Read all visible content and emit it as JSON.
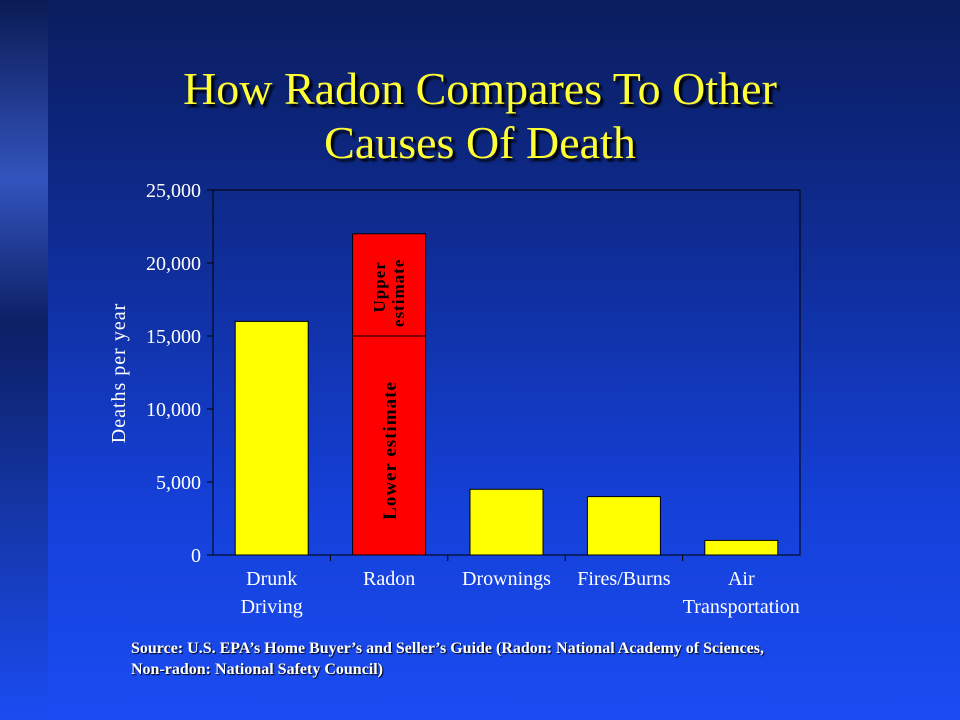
{
  "slide": {
    "title_line1": "How Radon Compares To Other",
    "title_line2": "Causes Of Death",
    "source_line1": "Source: U.S. EPA’s Home Buyer’s and Seller’s Guide (Radon: National Academy of Sciences,",
    "source_line2": "Non-radon: National Safety Council)"
  },
  "colors": {
    "title": "#ffff33",
    "bar_default": "#ffff00",
    "bar_radon": "#ff0000",
    "radon_label_text": "#000000",
    "axis_text": "#ffffff"
  },
  "chart_data": {
    "type": "bar",
    "title": "",
    "ylabel": "Deaths per year",
    "xlabel": "",
    "ylim": [
      0,
      25000
    ],
    "yticks": [
      0,
      5000,
      10000,
      15000,
      20000,
      25000
    ],
    "ytick_labels": [
      "0",
      "5,000",
      "10,000",
      "15,000",
      "20,000",
      "25,000"
    ],
    "grid": false,
    "categories": [
      [
        "Drunk",
        "Driving"
      ],
      [
        "Radon"
      ],
      [
        "Drownings"
      ],
      [
        "Fires/Burns"
      ],
      [
        "Air",
        "Transportation"
      ]
    ],
    "values": [
      16000,
      15000,
      4500,
      4000,
      1000
    ],
    "radon_segments": [
      {
        "label": "Lower estimate",
        "from": 0,
        "to": 15000
      },
      {
        "label_lines": [
          "Upper",
          "estimate"
        ],
        "from": 15000,
        "to": 22000
      }
    ]
  }
}
